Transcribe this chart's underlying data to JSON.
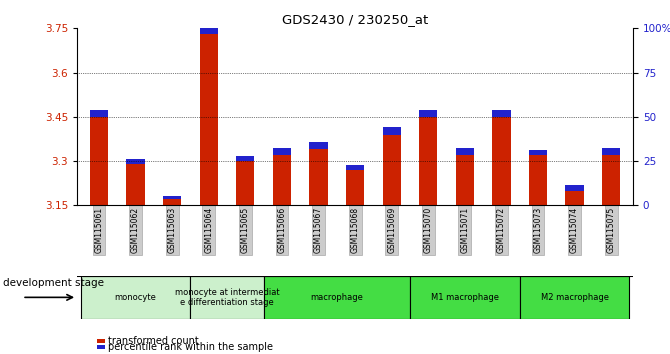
{
  "title": "GDS2430 / 230250_at",
  "samples": [
    "GSM115061",
    "GSM115062",
    "GSM115063",
    "GSM115064",
    "GSM115065",
    "GSM115066",
    "GSM115067",
    "GSM115068",
    "GSM115069",
    "GSM115070",
    "GSM115071",
    "GSM115072",
    "GSM115073",
    "GSM115074",
    "GSM115075"
  ],
  "transformed_count": [
    3.45,
    3.29,
    3.17,
    3.73,
    3.3,
    3.32,
    3.34,
    3.27,
    3.39,
    3.45,
    3.32,
    3.45,
    3.32,
    3.2,
    3.32
  ],
  "percentile_rank": [
    4,
    3,
    2,
    5,
    3,
    4,
    4,
    3,
    4,
    4,
    4,
    4,
    3,
    3,
    4
  ],
  "ymin": 3.15,
  "ymax": 3.75,
  "yticks": [
    3.15,
    3.3,
    3.45,
    3.6,
    3.75
  ],
  "right_yticks": [
    0,
    25,
    50,
    75,
    100
  ],
  "right_yticklabels": [
    "0",
    "25",
    "50",
    "75",
    "100%"
  ],
  "groups": [
    {
      "label": "monocyte",
      "start": 0,
      "end": 3,
      "color": "#ccf0cc"
    },
    {
      "label": "monocyte at intermediat\ne differentiation stage",
      "start": 3,
      "end": 5,
      "color": "#ccf0cc"
    },
    {
      "label": "macrophage",
      "start": 5,
      "end": 9,
      "color": "#44dd44"
    },
    {
      "label": "M1 macrophage",
      "start": 9,
      "end": 12,
      "color": "#44dd44"
    },
    {
      "label": "M2 macrophage",
      "start": 12,
      "end": 15,
      "color": "#44dd44"
    }
  ],
  "bar_color_red": "#cc2200",
  "bar_color_blue": "#2222cc",
  "grid_color": "black",
  "tick_label_color_left": "#cc2200",
  "tick_label_color_right": "#2222cc",
  "legend_items": [
    {
      "label": "transformed count",
      "color": "#cc2200"
    },
    {
      "label": "percentile rank within the sample",
      "color": "#2222cc"
    }
  ],
  "development_stage_label": "development stage",
  "background_color": "#ffffff"
}
